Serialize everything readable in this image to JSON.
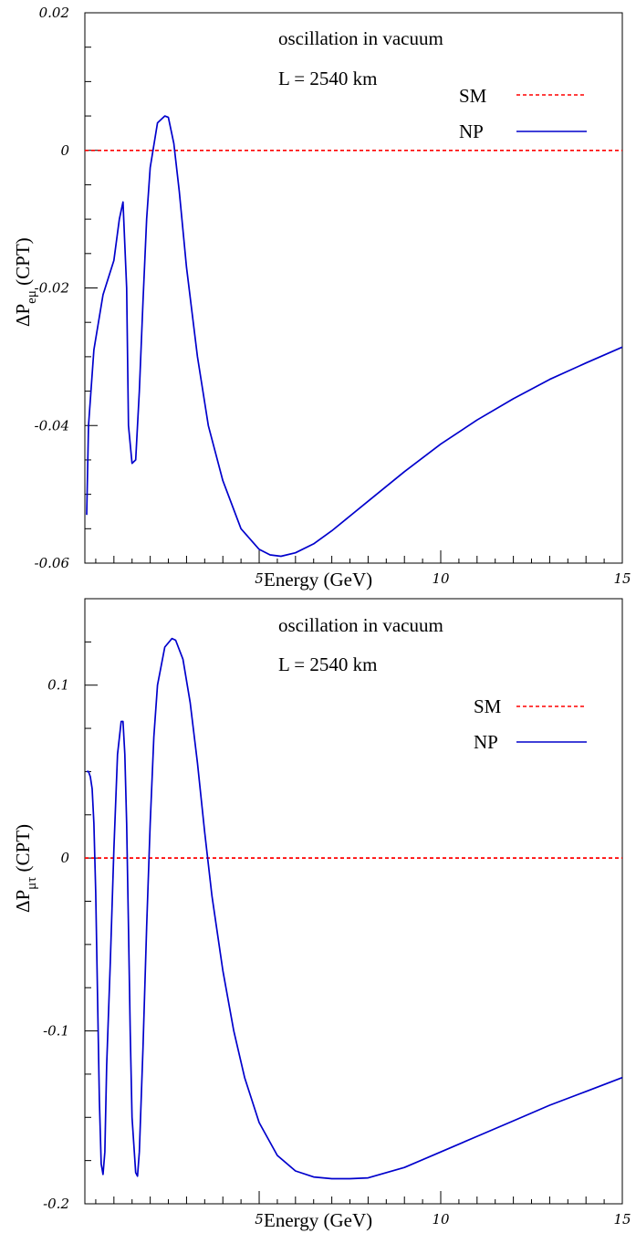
{
  "chart_data": [
    {
      "type": "line",
      "annotations": [
        "oscillation in vacuum",
        "L = 2540 km"
      ],
      "xlabel": "Energy (GeV)",
      "ylabel": {
        "main": "ΔP",
        "sub": "eμ",
        "suffix": " (CPT)"
      },
      "xlim": [
        0.2,
        15
      ],
      "ylim": [
        -0.06,
        0.02
      ],
      "xticks": [
        5,
        10,
        15
      ],
      "xtick_labels": [
        "5",
        "10",
        "15"
      ],
      "yticks": [
        0.02,
        0,
        -0.02,
        -0.04,
        -0.06
      ],
      "ytick_labels": [
        "0.02",
        "0",
        "-0.02",
        "-0.04",
        "-0.06"
      ],
      "legend_position": "top-right",
      "series": [
        {
          "name": "SM",
          "style": "dashed",
          "color": "#ff0000",
          "x": [
            0.2,
            15
          ],
          "y": [
            0,
            0
          ]
        },
        {
          "name": "NP",
          "style": "solid",
          "color": "#0000cc",
          "x": [
            0.25,
            0.3,
            0.45,
            0.7,
            1.0,
            1.15,
            1.25,
            1.35,
            1.4,
            1.5,
            1.6,
            1.7,
            1.8,
            1.9,
            2.0,
            2.2,
            2.4,
            2.5,
            2.65,
            2.8,
            3.0,
            3.3,
            3.6,
            4.0,
            4.5,
            5.0,
            5.3,
            5.6,
            6.0,
            6.5,
            7.0,
            8.0,
            9.0,
            10.0,
            11.0,
            12.0,
            13.0,
            14.0,
            15.0
          ],
          "y": [
            -0.053,
            -0.04,
            -0.029,
            -0.021,
            -0.016,
            -0.01,
            -0.0075,
            -0.02,
            -0.04,
            -0.0455,
            -0.045,
            -0.035,
            -0.022,
            -0.01,
            -0.0025,
            0.004,
            0.005,
            0.0048,
            0.001,
            -0.006,
            -0.017,
            -0.03,
            -0.04,
            -0.048,
            -0.055,
            -0.058,
            -0.0588,
            -0.059,
            -0.0585,
            -0.0572,
            -0.0553,
            -0.051,
            -0.0467,
            -0.0427,
            -0.0392,
            -0.0361,
            -0.0333,
            -0.0309,
            -0.0286
          ]
        }
      ]
    },
    {
      "type": "line",
      "annotations": [
        "oscillation in vacuum",
        "L = 2540 km"
      ],
      "xlabel": "Energy (GeV)",
      "ylabel": {
        "main": "ΔP",
        "sub": "μτ",
        "suffix": " (CPT)"
      },
      "xlim": [
        0.2,
        15
      ],
      "ylim": [
        -0.2,
        0.15
      ],
      "xticks": [
        5,
        10,
        15
      ],
      "xtick_labels": [
        "5",
        "10",
        "15"
      ],
      "yticks": [
        0.1,
        0,
        -0.1,
        -0.2
      ],
      "ytick_labels": [
        "0.1",
        "0",
        "-0.1",
        "-0.2"
      ],
      "legend_position": "top-right",
      "series": [
        {
          "name": "SM",
          "style": "dashed",
          "color": "#ff0000",
          "x": [
            0.2,
            15
          ],
          "y": [
            0,
            0
          ]
        },
        {
          "name": "NP",
          "style": "solid",
          "color": "#0000cc",
          "x": [
            0.25,
            0.3,
            0.35,
            0.4,
            0.45,
            0.5,
            0.55,
            0.6,
            0.65,
            0.7,
            0.75,
            0.8,
            0.9,
            1.0,
            1.1,
            1.2,
            1.25,
            1.3,
            1.35,
            1.4,
            1.45,
            1.5,
            1.6,
            1.65,
            1.7,
            1.8,
            1.9,
            2.0,
            2.1,
            2.2,
            2.4,
            2.6,
            2.7,
            2.9,
            3.1,
            3.3,
            3.5,
            3.7,
            4.0,
            4.3,
            4.6,
            5.0,
            5.5,
            6.0,
            6.5,
            7.0,
            7.5,
            8.0,
            9.0,
            10.0,
            11.0,
            12.0,
            13.0,
            14.0,
            15.0
          ],
          "y": [
            0.05,
            0.05,
            0.047,
            0.04,
            0.02,
            -0.02,
            -0.08,
            -0.14,
            -0.177,
            -0.183,
            -0.17,
            -0.12,
            -0.06,
            0.005,
            0.06,
            0.079,
            0.079,
            0.06,
            0.02,
            -0.04,
            -0.1,
            -0.15,
            -0.182,
            -0.184,
            -0.17,
            -0.11,
            -0.04,
            0.02,
            0.07,
            0.1,
            0.122,
            0.127,
            0.126,
            0.115,
            0.09,
            0.055,
            0.015,
            -0.022,
            -0.065,
            -0.1,
            -0.127,
            -0.153,
            -0.172,
            -0.181,
            -0.1845,
            -0.1855,
            -0.1855,
            -0.185,
            -0.179,
            -0.17,
            -0.161,
            -0.152,
            -0.143,
            -0.135,
            -0.127
          ]
        }
      ]
    }
  ]
}
